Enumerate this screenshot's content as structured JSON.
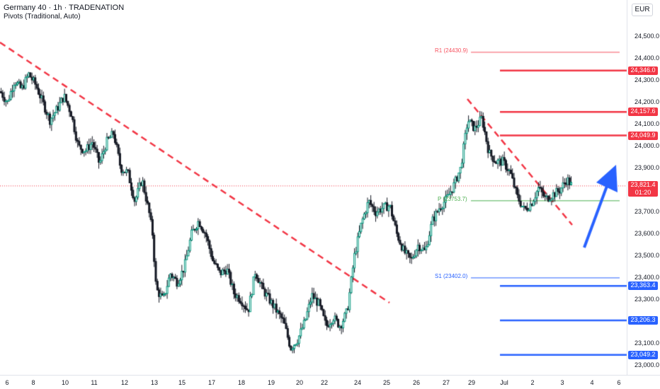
{
  "header": {
    "title": "Germany 40 · 1h · TRADENATION",
    "indicator": "Pivots (Traditional, Auto)",
    "currency": "EUR"
  },
  "chart_data": {
    "type": "candlestick",
    "instrument": "Germany 40",
    "timeframe": "1h",
    "ylim": [
      23000,
      24600
    ],
    "y_ticks": [
      "24,500.0",
      "24,400.0",
      "24,300.0",
      "24,200.0",
      "24,100.0",
      "24,000.0",
      "23,900.0",
      "23,700.0",
      "23,600.0",
      "23,500.0",
      "23,400.0",
      "23,300.0",
      "23,100.0",
      "23,000.0"
    ],
    "x_ticks": [
      "6",
      "8",
      "10",
      "11",
      "12",
      "13",
      "15",
      "17",
      "18",
      "19",
      "20",
      "22",
      "24",
      "25",
      "26",
      "27",
      "29",
      "Jul",
      "2",
      "3",
      "4",
      "6"
    ],
    "price_tags": [
      {
        "label": "24,346.0",
        "value": 24346.0,
        "color": "#f23645"
      },
      {
        "label": "24,157.6",
        "value": 24157.6,
        "color": "#f23645"
      },
      {
        "label": "24,049.9",
        "value": 24049.9,
        "color": "#f23645"
      },
      {
        "label": "23,821.4",
        "value": 23821.4,
        "color": "#f23645",
        "sub": "01:20"
      },
      {
        "label": "23,363.4",
        "value": 23363.4,
        "color": "#2962ff"
      },
      {
        "label": "23,206.3",
        "value": 23206.3,
        "color": "#2962ff"
      },
      {
        "label": "23,049.2",
        "value": 23049.2,
        "color": "#2962ff"
      }
    ],
    "pivots": [
      {
        "label": "R1 (24430.9)",
        "value": 24430.9,
        "color": "#f7525f"
      },
      {
        "label": "P (23753.7)",
        "value": 23753.7,
        "color": "#4caf50"
      },
      {
        "label": "S1 (23402.0)",
        "value": 23402.0,
        "color": "#2962ff"
      }
    ],
    "close_points": [
      [
        0,
        24250
      ],
      [
        10,
        24200
      ],
      [
        20,
        24300
      ],
      [
        30,
        24260
      ],
      [
        40,
        24330
      ],
      [
        50,
        24280
      ],
      [
        60,
        24200
      ],
      [
        70,
        24120
      ],
      [
        80,
        24170
      ],
      [
        90,
        24230
      ],
      [
        100,
        24150
      ],
      [
        110,
        24000
      ],
      [
        120,
        23980
      ],
      [
        130,
        24020
      ],
      [
        140,
        23920
      ],
      [
        150,
        24020
      ],
      [
        160,
        24060
      ],
      [
        170,
        23900
      ],
      [
        180,
        23880
      ],
      [
        190,
        23750
      ],
      [
        200,
        23850
      ],
      [
        210,
        23700
      ],
      [
        215,
        23600
      ],
      [
        220,
        23350
      ],
      [
        230,
        23300
      ],
      [
        240,
        23420
      ],
      [
        250,
        23380
      ],
      [
        260,
        23450
      ],
      [
        270,
        23600
      ],
      [
        280,
        23660
      ],
      [
        290,
        23600
      ],
      [
        300,
        23480
      ],
      [
        310,
        23420
      ],
      [
        320,
        23440
      ],
      [
        330,
        23330
      ],
      [
        340,
        23300
      ],
      [
        350,
        23250
      ],
      [
        360,
        23430
      ],
      [
        370,
        23350
      ],
      [
        380,
        23300
      ],
      [
        390,
        23250
      ],
      [
        400,
        23200
      ],
      [
        410,
        23080
      ],
      [
        420,
        23120
      ],
      [
        430,
        23200
      ],
      [
        440,
        23320
      ],
      [
        450,
        23280
      ],
      [
        460,
        23180
      ],
      [
        470,
        23220
      ],
      [
        480,
        23180
      ],
      [
        490,
        23250
      ],
      [
        500,
        23500
      ],
      [
        510,
        23650
      ],
      [
        520,
        23750
      ],
      [
        530,
        23700
      ],
      [
        540,
        23720
      ],
      [
        550,
        23730
      ],
      [
        560,
        23600
      ],
      [
        570,
        23520
      ],
      [
        580,
        23480
      ],
      [
        590,
        23550
      ],
      [
        600,
        23520
      ],
      [
        610,
        23660
      ],
      [
        620,
        23720
      ],
      [
        630,
        23760
      ],
      [
        640,
        23820
      ],
      [
        650,
        23900
      ],
      [
        660,
        24120
      ],
      [
        670,
        24080
      ],
      [
        680,
        24130
      ],
      [
        690,
        23970
      ],
      [
        700,
        23930
      ],
      [
        710,
        23930
      ],
      [
        720,
        23880
      ],
      [
        730,
        23770
      ],
      [
        740,
        23710
      ],
      [
        750,
        23740
      ],
      [
        760,
        23810
      ],
      [
        770,
        23760
      ],
      [
        780,
        23780
      ],
      [
        790,
        23800
      ],
      [
        800,
        23850
      ],
      [
        807,
        23821
      ]
    ]
  }
}
